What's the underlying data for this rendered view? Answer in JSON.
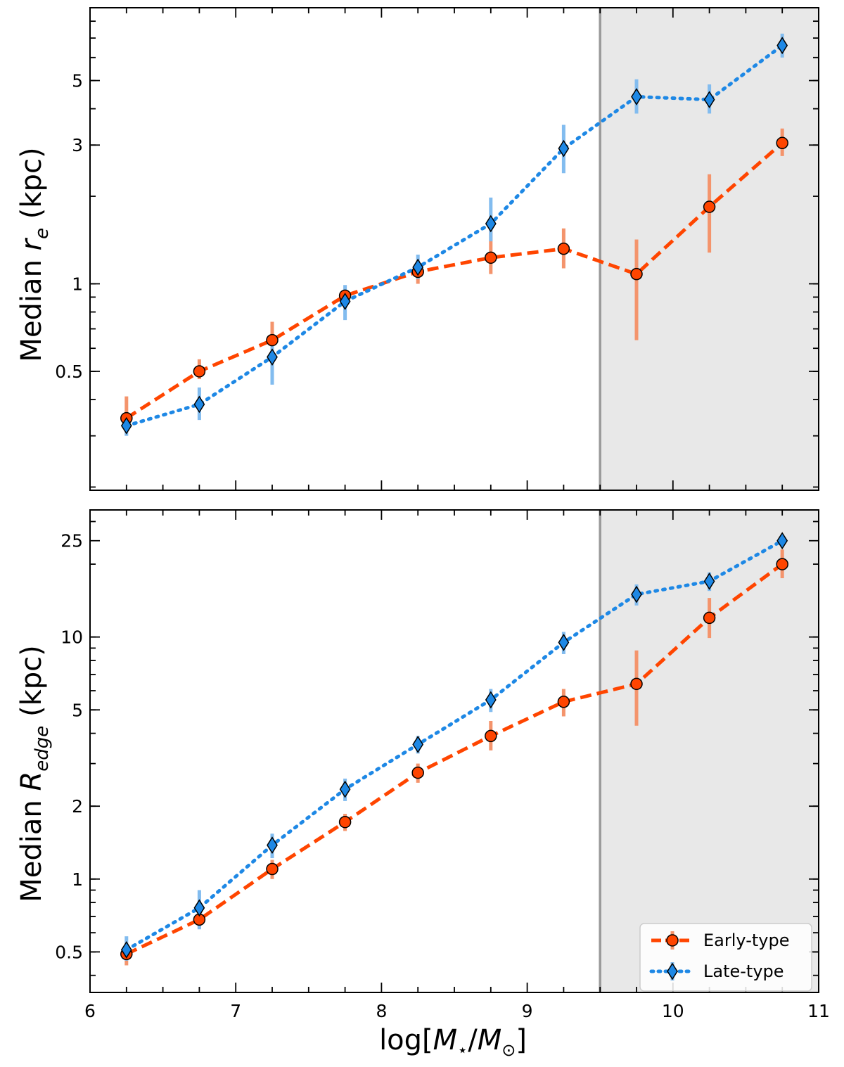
{
  "chart_data": [
    {
      "type": "line",
      "panel": "top",
      "ylabel": "Median r_e (kpc)",
      "ylabel_parts": {
        "prefix": "Median ",
        "symbol": "r",
        "subscript": "e",
        "suffix": " (kpc)"
      },
      "xlabel": "",
      "yscale": "log",
      "xlim": [
        6,
        11
      ],
      "ylim": [
        0.195,
        8.9
      ],
      "x_ticks": [
        "6",
        "7",
        "8",
        "9",
        "10",
        "11"
      ],
      "y_ticks": [
        {
          "value": 0.5,
          "label": "0.5"
        },
        {
          "value": 1,
          "label": "1"
        },
        {
          "value": 3,
          "label": "3"
        },
        {
          "value": 5,
          "label": "5"
        }
      ],
      "vline_x": 9.5,
      "shaded_region": [
        9.5,
        11
      ],
      "series": [
        {
          "name": "Early-type",
          "color": "#ff4500",
          "errcolor": "#f4946c",
          "linestyle": "dashed",
          "marker": "circle",
          "x": [
            6.25,
            6.75,
            7.25,
            7.75,
            8.25,
            8.75,
            9.25,
            9.75,
            10.25,
            10.75
          ],
          "y": [
            0.345,
            0.5,
            0.64,
            0.91,
            1.1,
            1.23,
            1.32,
            1.08,
            1.84,
            3.05
          ],
          "yerr_low": [
            0.33,
            0.47,
            0.58,
            0.86,
            1.0,
            1.08,
            1.13,
            0.64,
            1.28,
            2.75
          ],
          "yerr_high": [
            0.41,
            0.55,
            0.74,
            0.95,
            1.14,
            1.52,
            1.55,
            1.42,
            2.38,
            3.42
          ]
        },
        {
          "name": "Late-type",
          "color": "#1e88e5",
          "errcolor": "#82bcef",
          "linestyle": "dotted",
          "marker": "diamond",
          "x": [
            6.25,
            6.75,
            7.25,
            7.75,
            8.25,
            8.75,
            9.25,
            9.75,
            10.25,
            10.75
          ],
          "y": [
            0.325,
            0.385,
            0.56,
            0.87,
            1.14,
            1.61,
            2.92,
            4.4,
            4.3,
            6.6
          ],
          "yerr_low": [
            0.3,
            0.34,
            0.45,
            0.75,
            1.04,
            1.4,
            2.4,
            3.85,
            3.85,
            6.0
          ],
          "yerr_high": [
            0.34,
            0.44,
            0.66,
            0.99,
            1.26,
            1.98,
            3.52,
            5.05,
            4.85,
            7.25
          ]
        }
      ]
    },
    {
      "type": "line",
      "panel": "bottom",
      "ylabel": "Median R_edge (kpc)",
      "ylabel_parts": {
        "prefix": "Median ",
        "symbol": "R",
        "subscript": "edge",
        "suffix": " (kpc)"
      },
      "xlabel": "log[M⋆/M⊙]",
      "xlabel_parts": {
        "open": "log[",
        "num": "M",
        "num_sub": "⋆",
        "slash": "/",
        "den": "M",
        "den_sub": "⊙",
        "close": "]"
      },
      "yscale": "log",
      "xlim": [
        6,
        11
      ],
      "ylim": [
        0.34,
        33.5
      ],
      "x_ticks": [
        "6",
        "7",
        "8",
        "9",
        "10",
        "11"
      ],
      "y_ticks": [
        {
          "value": 0.5,
          "label": "0.5"
        },
        {
          "value": 1,
          "label": "1"
        },
        {
          "value": 2,
          "label": "2"
        },
        {
          "value": 5,
          "label": "5"
        },
        {
          "value": 10,
          "label": "10"
        },
        {
          "value": 25,
          "label": "25"
        }
      ],
      "vline_x": 9.5,
      "shaded_region": [
        9.5,
        11
      ],
      "legend_position": "lower-right",
      "series": [
        {
          "name": "Early-type",
          "color": "#ff4500",
          "errcolor": "#f4946c",
          "linestyle": "dashed",
          "marker": "circle",
          "x": [
            6.25,
            6.75,
            7.25,
            7.75,
            8.25,
            8.75,
            9.25,
            9.75,
            10.25,
            10.75
          ],
          "y": [
            0.49,
            0.68,
            1.1,
            1.72,
            2.75,
            3.9,
            5.4,
            6.4,
            12.0,
            20.0
          ],
          "yerr_low": [
            0.44,
            0.63,
            1.0,
            1.58,
            2.5,
            3.4,
            4.7,
            4.3,
            9.9,
            17.5
          ],
          "yerr_high": [
            0.54,
            0.73,
            1.2,
            1.86,
            3.0,
            4.5,
            6.1,
            8.8,
            14.5,
            23.0
          ]
        },
        {
          "name": "Late-type",
          "color": "#1e88e5",
          "errcolor": "#82bcef",
          "linestyle": "dotted",
          "marker": "diamond",
          "x": [
            6.25,
            6.75,
            7.25,
            7.75,
            8.25,
            8.75,
            9.25,
            9.75,
            10.25,
            10.75
          ],
          "y": [
            0.51,
            0.76,
            1.38,
            2.35,
            3.6,
            5.5,
            9.5,
            15.0,
            17.0,
            25.0
          ],
          "yerr_low": [
            0.46,
            0.62,
            1.22,
            2.1,
            3.3,
            4.9,
            8.5,
            13.5,
            15.5,
            23.5
          ],
          "yerr_high": [
            0.58,
            0.9,
            1.54,
            2.6,
            3.9,
            6.1,
            10.5,
            16.5,
            18.5,
            26.5
          ]
        }
      ]
    }
  ]
}
